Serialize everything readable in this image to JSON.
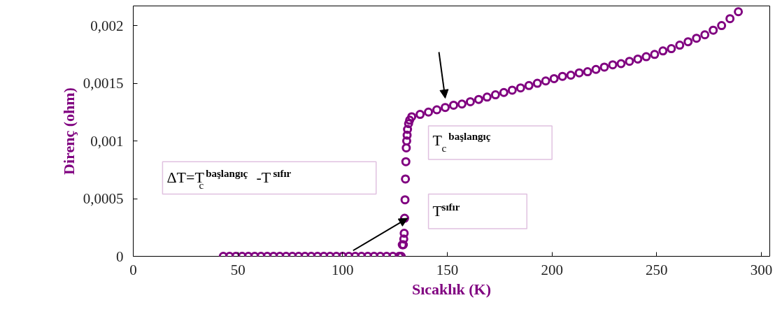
{
  "chart_data": {
    "type": "scatter",
    "xlabel": "Sıcaklık (K)",
    "ylabel": "Direnç (ohm)",
    "x": [
      43,
      46,
      49,
      52,
      55,
      58,
      61,
      64,
      67,
      70,
      73,
      76,
      79,
      82,
      85,
      88,
      91,
      94,
      97,
      100,
      103,
      106,
      109,
      112,
      115,
      118,
      121,
      124,
      127,
      128,
      128.5,
      129,
      129.2,
      129.4,
      129.6,
      129.8,
      130,
      130.2,
      130.4,
      130.6,
      130.8,
      131,
      131.5,
      132,
      133,
      137,
      141,
      145,
      149,
      153,
      157,
      161,
      165,
      169,
      173,
      177,
      181,
      185,
      189,
      193,
      197,
      201,
      205,
      209,
      213,
      217,
      221,
      225,
      229,
      233,
      237,
      241,
      245,
      249,
      253,
      257,
      261,
      265,
      269,
      273,
      277,
      281,
      285,
      289
    ],
    "series": [
      {
        "color": "#800080",
        "values": [
          0,
          0,
          0,
          0,
          0,
          0,
          0,
          0,
          0,
          0,
          0,
          0,
          0,
          0,
          0,
          0,
          0,
          0,
          0,
          0,
          0,
          0,
          0,
          0,
          0,
          0,
          0,
          0,
          0,
          0,
          0.0001,
          0.0001,
          0.00015,
          0.0002,
          0.00033,
          0.00049,
          0.00067,
          0.00082,
          0.00094,
          0.001,
          0.00105,
          0.0011,
          0.00115,
          0.00118,
          0.00121,
          0.00123,
          0.00125,
          0.00127,
          0.00129,
          0.00131,
          0.00132,
          0.00134,
          0.00136,
          0.00138,
          0.0014,
          0.00142,
          0.00144,
          0.00146,
          0.00148,
          0.0015,
          0.00152,
          0.00154,
          0.00156,
          0.00157,
          0.00159,
          0.0016,
          0.00162,
          0.00164,
          0.00166,
          0.00167,
          0.00169,
          0.00171,
          0.00173,
          0.00175,
          0.00178,
          0.0018,
          0.00183,
          0.00186,
          0.00189,
          0.00192,
          0.00196,
          0.002,
          0.00206,
          0.00212
        ]
      }
    ],
    "marker": "circle",
    "grid": false,
    "xlim": [
      0,
      304
    ],
    "xticks": [
      0,
      50,
      100,
      150,
      200,
      250,
      300
    ],
    "ylim": [
      0,
      0.00217
    ],
    "yticks": [
      {
        "value": 0,
        "label": "0"
      },
      {
        "value": 0.0005,
        "label": "0,0005"
      },
      {
        "value": 0.001,
        "label": "0,001"
      },
      {
        "value": 0.0015,
        "label": "0,0015"
      },
      {
        "value": 0.002,
        "label": "0,002"
      }
    ],
    "annotations": [
      "ΔT=T$_{c}$$^{başlangıç}$-T$^{sıfır}$",
      "T$_{c}$$^{başlangıç}$",
      "T$^{sıfır}$"
    ]
  }
}
